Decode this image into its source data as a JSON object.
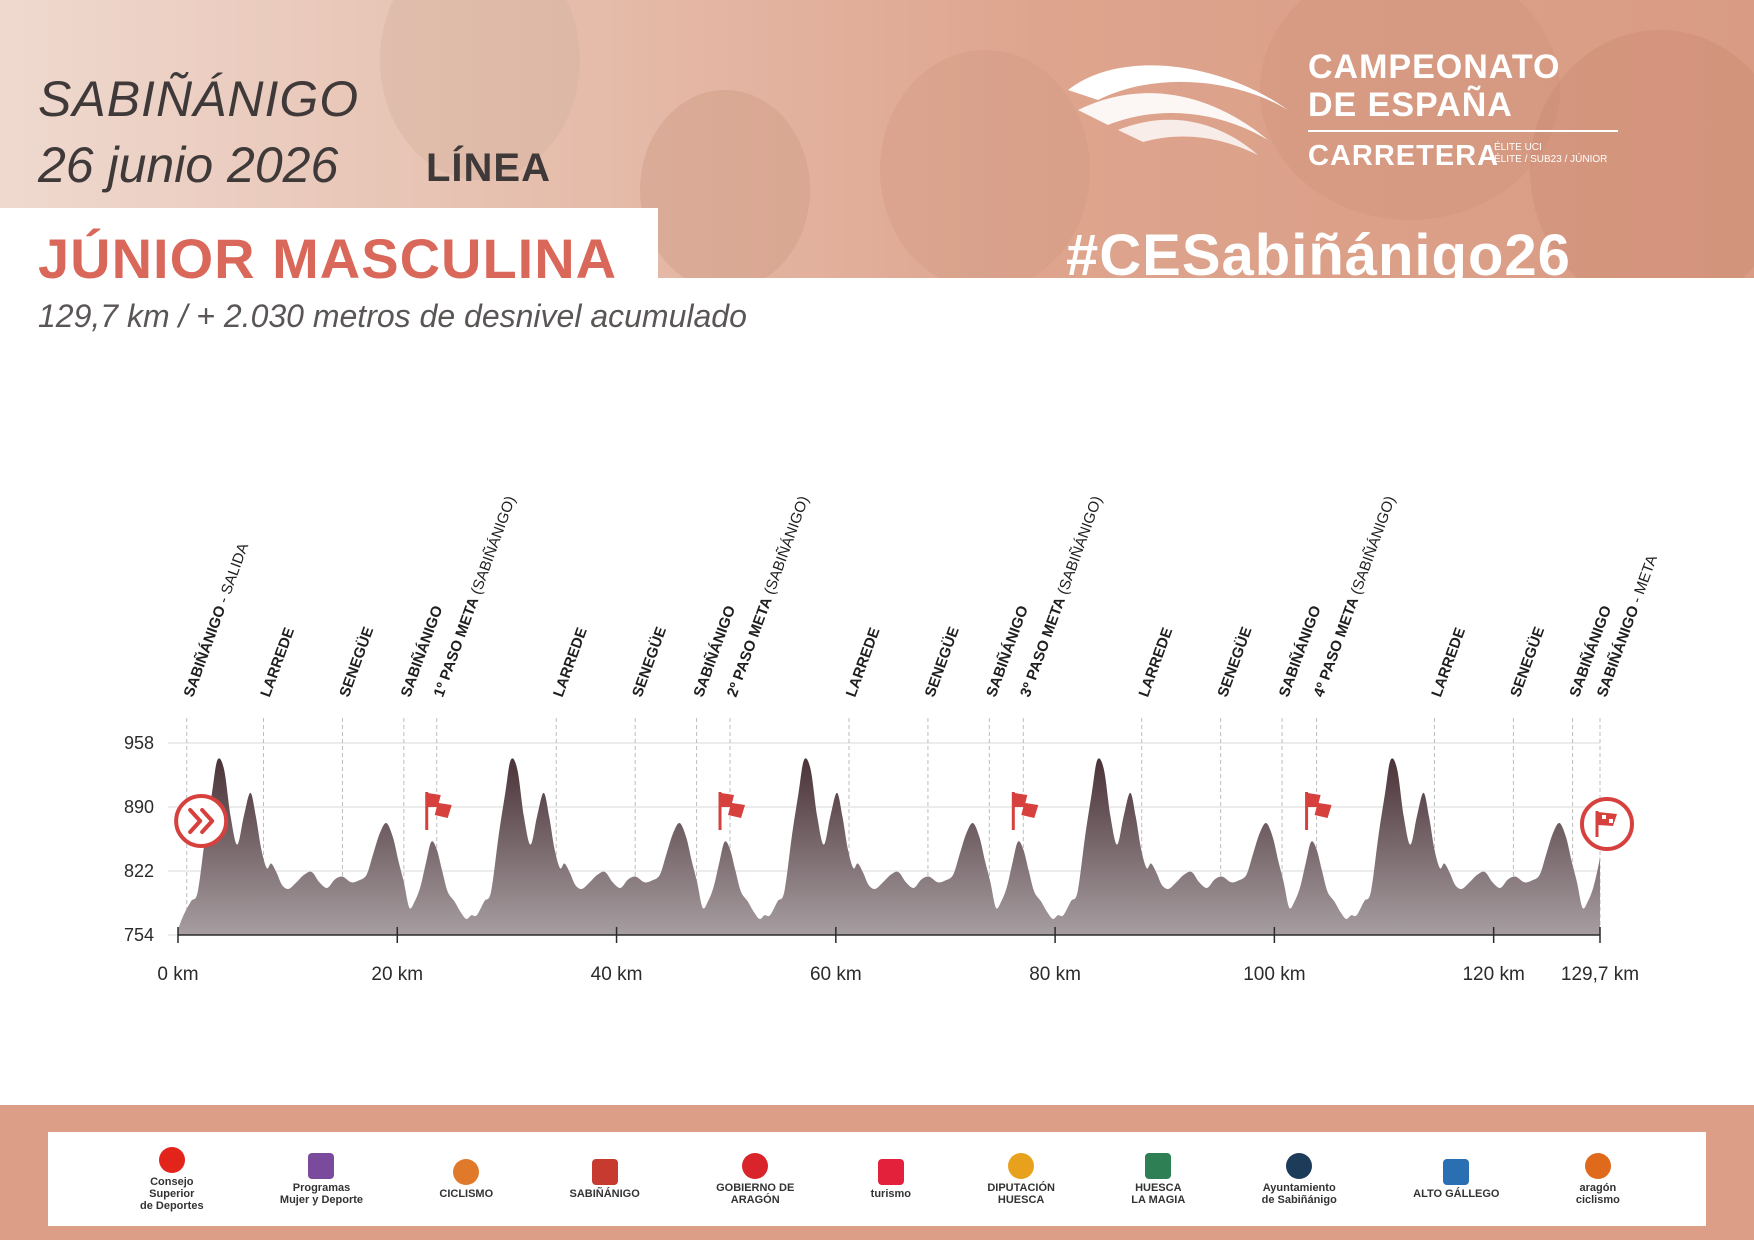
{
  "header": {
    "city": "SABIÑÁNIGO",
    "date": "26 junio 2026",
    "race_type": "LÍNEA",
    "category": "JÚNIOR MASCULINA",
    "subtitle": "129,7 km / + 2.030 metros de desnivel acumulado"
  },
  "brand": {
    "line1": "CAMPEONATO",
    "line2": "DE ESPAÑA",
    "line3": "CARRETERA",
    "line4": "ÉLITE UCI\nÉLITE / SUB23 / JÚNIOR",
    "hashtag": "#CESabiñánigo26"
  },
  "chart_data": {
    "type": "area",
    "title": "",
    "xlabel": "",
    "ylabel": "",
    "xlim": [
      0,
      129.7
    ],
    "ylim": [
      754,
      958
    ],
    "x_ticks": [
      {
        "value": 0,
        "label": "0 km"
      },
      {
        "value": 20,
        "label": "20 km"
      },
      {
        "value": 40,
        "label": "40 km"
      },
      {
        "value": 60,
        "label": "60 km"
      },
      {
        "value": 80,
        "label": "80 km"
      },
      {
        "value": 100,
        "label": "100 km"
      },
      {
        "value": 120,
        "label": "120 km"
      },
      {
        "value": 129.7,
        "label": "129,7 km"
      }
    ],
    "y_ticks": [
      754,
      822,
      890,
      958
    ],
    "y_tick_labels": [
      "754",
      "822",
      "890",
      "958"
    ],
    "grid": "horizontal",
    "lap_profile": {
      "km": [
        0,
        0.5,
        1.2,
        1.8,
        2.5,
        3.1,
        3.6,
        4.2,
        4.8,
        5.4,
        6.0,
        6.6,
        7.1,
        7.6,
        8.1,
        8.5,
        9.0,
        9.5,
        10.1,
        10.8,
        11.5,
        12.2,
        12.9,
        13.6,
        14.3,
        15.0,
        15.8,
        16.5,
        17.2,
        17.8,
        18.4,
        19.0,
        19.6,
        20.1,
        20.6,
        21.1,
        21.6,
        22.1,
        22.6,
        23.1,
        23.6,
        24.1,
        24.6,
        25.2,
        25.8,
        26.3,
        26.75
      ],
      "alt": [
        760,
        775,
        790,
        800,
        860,
        905,
        940,
        930,
        880,
        850,
        880,
        905,
        880,
        845,
        825,
        830,
        820,
        807,
        803,
        810,
        818,
        821,
        810,
        804,
        813,
        816,
        810,
        812,
        818,
        840,
        862,
        873,
        858,
        833,
        810,
        783,
        790,
        805,
        830,
        853,
        845,
        822,
        800,
        790,
        778,
        771,
        775
      ]
    },
    "flag_markers": [
      {
        "km": 23.6,
        "type": "paso-meta"
      },
      {
        "km": 50.35,
        "type": "paso-meta"
      },
      {
        "km": 77.1,
        "type": "paso-meta"
      },
      {
        "km": 103.85,
        "type": "paso-meta"
      }
    ],
    "start_marker": {
      "km": 1.2
    },
    "finish_marker": {
      "km": 129.7
    },
    "annotations": [
      {
        "km": 0.8,
        "name": "SABIÑÁNIGO",
        "suffix": " - SALIDA"
      },
      {
        "km": 7.8,
        "name": "LARREDE",
        "suffix": ""
      },
      {
        "km": 15.0,
        "name": "SENEGÜE",
        "suffix": ""
      },
      {
        "km": 20.6,
        "name": "SABIÑÁNIGO",
        "suffix": ""
      },
      {
        "km": 23.6,
        "name": "1º PASO META",
        "suffix": " (SABIÑÁNIGO)"
      },
      {
        "km": 34.5,
        "name": "LARREDE",
        "suffix": ""
      },
      {
        "km": 41.7,
        "name": "SENEGÜE",
        "suffix": ""
      },
      {
        "km": 47.3,
        "name": "SABIÑÁNIGO",
        "suffix": ""
      },
      {
        "km": 50.35,
        "name": "2º PASO META",
        "suffix": " (SABIÑÁNIGO)"
      },
      {
        "km": 61.2,
        "name": "LARREDE",
        "suffix": ""
      },
      {
        "km": 68.4,
        "name": "SENEGÜE",
        "suffix": ""
      },
      {
        "km": 74.0,
        "name": "SABIÑÁNIGO",
        "suffix": ""
      },
      {
        "km": 77.1,
        "name": "3º PASO META",
        "suffix": " (SABIÑÁNIGO)"
      },
      {
        "km": 87.9,
        "name": "LARREDE",
        "suffix": ""
      },
      {
        "km": 95.1,
        "name": "SENEGÜE",
        "suffix": ""
      },
      {
        "km": 100.7,
        "name": "SABIÑÁNIGO",
        "suffix": ""
      },
      {
        "km": 103.85,
        "name": "4º PASO META",
        "suffix": " (SABIÑÁNIGO)"
      },
      {
        "km": 114.6,
        "name": "LARREDE",
        "suffix": ""
      },
      {
        "km": 121.8,
        "name": "SENEGÜE",
        "suffix": ""
      },
      {
        "km": 127.2,
        "name": "SABIÑÁNIGO",
        "suffix": ""
      },
      {
        "km": 129.7,
        "name": "SABIÑÁNIGO",
        "suffix": " - META"
      }
    ],
    "colors": {
      "area_top": "#4a3338",
      "area_bottom": "#a79ea1",
      "marker": "#d6413e",
      "axis_text": "#2b2b2b"
    }
  },
  "footer": {
    "logos": [
      {
        "icon": "csd-logo",
        "name": "Consejo\nSuperior\nde Deportes"
      },
      {
        "icon": "mjd-logo",
        "name": "Programas\nMujer y Deporte"
      },
      {
        "icon": "rfec-logo",
        "name": "CICLISMO"
      },
      {
        "icon": "crest-logo",
        "name": "SABIÑÁNIGO"
      },
      {
        "icon": "aragon-gov-logo",
        "name": "GOBIERNO DE\nARAGÓN"
      },
      {
        "icon": "aragon-turismo-logo",
        "name": "turismo"
      },
      {
        "icon": "diputacion-logo",
        "name": "DIPUTACIÓN\nHUESCA"
      },
      {
        "icon": "huesca-logo",
        "name": "HUESCA\nLA MAGIA"
      },
      {
        "icon": "ayuntamiento-logo",
        "name": "Ayuntamiento\nde Sabiñánigo"
      },
      {
        "icon": "alto-gallego-logo",
        "name": "ALTO GÁLLEGO"
      },
      {
        "icon": "aragon-ciclismo-logo",
        "name": "aragón\nciclismo"
      }
    ]
  }
}
